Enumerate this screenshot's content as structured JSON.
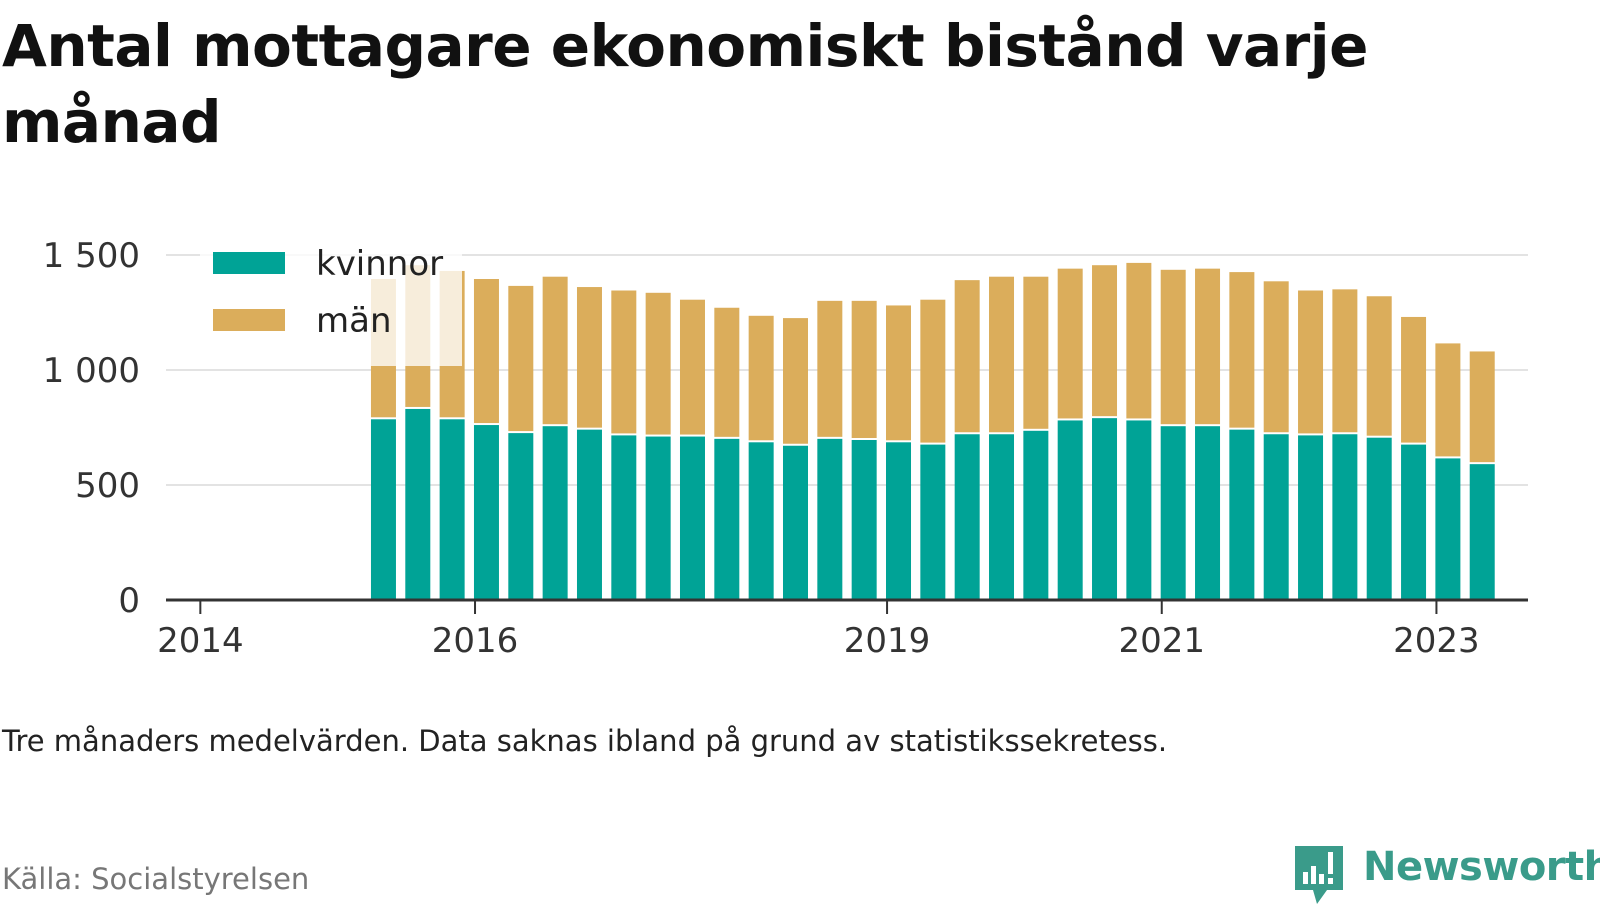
{
  "chart_data": {
    "type": "bar",
    "stacked": true,
    "title": "Antal mottagare ekonomiskt bistånd varje månad",
    "xlabel": "",
    "ylabel": "",
    "ylim": [
      0,
      1500
    ],
    "yticks": [
      {
        "value": 0,
        "label": "0"
      },
      {
        "value": 500,
        "label": "500"
      },
      {
        "value": 1000,
        "label": "1 000"
      },
      {
        "value": 1500,
        "label": "1 500"
      }
    ],
    "xlim": [
      "2013-10",
      "2023-09"
    ],
    "xticks": [
      {
        "date": "2014-01",
        "label": "2014"
      },
      {
        "date": "2016-01",
        "label": "2016"
      },
      {
        "date": "2019-01",
        "label": "2019"
      },
      {
        "date": "2021-01",
        "label": "2021"
      },
      {
        "date": "2023-01",
        "label": "2023"
      }
    ],
    "grid": true,
    "legend_position": "top-left",
    "dates": [
      "2015-05",
      "2015-08",
      "2015-11",
      "2016-02",
      "2016-05",
      "2016-08",
      "2016-11",
      "2017-02",
      "2017-05",
      "2017-08",
      "2017-11",
      "2018-02",
      "2018-05",
      "2018-08",
      "2018-11",
      "2019-02",
      "2019-05",
      "2019-08",
      "2019-11",
      "2020-02",
      "2020-05",
      "2020-08",
      "2020-11",
      "2021-02",
      "2021-05",
      "2021-08",
      "2021-11",
      "2022-02",
      "2022-05",
      "2022-08",
      "2022-11",
      "2023-02",
      "2023-05"
    ],
    "series": [
      {
        "name": "kvinnor",
        "color": "#00a396",
        "values": [
          790,
          835,
          790,
          765,
          730,
          760,
          745,
          720,
          715,
          715,
          705,
          690,
          675,
          705,
          700,
          690,
          680,
          725,
          725,
          740,
          785,
          795,
          785,
          760,
          760,
          745,
          725,
          720,
          725,
          710,
          680,
          620,
          595
        ]
      },
      {
        "name": "män",
        "color": "#dbad5b",
        "values": [
          610,
          625,
          645,
          635,
          640,
          650,
          620,
          630,
          625,
          595,
          570,
          550,
          555,
          600,
          605,
          595,
          630,
          670,
          685,
          670,
          660,
          665,
          685,
          680,
          685,
          685,
          665,
          630,
          630,
          615,
          555,
          500,
          490
        ]
      }
    ]
  },
  "note": "Tre månaders medelvärden. Data saknas ibland på grund av statistikssekretess.",
  "source": "Källa: Socialstyrelsen",
  "brand": {
    "name": "Newsworthy",
    "icon": "newsworthy-chart-icon",
    "color": "#3a9b8a"
  },
  "colors": {
    "grid": "#e3e3e3",
    "axis": "#333333",
    "tick_text": "#333333"
  }
}
